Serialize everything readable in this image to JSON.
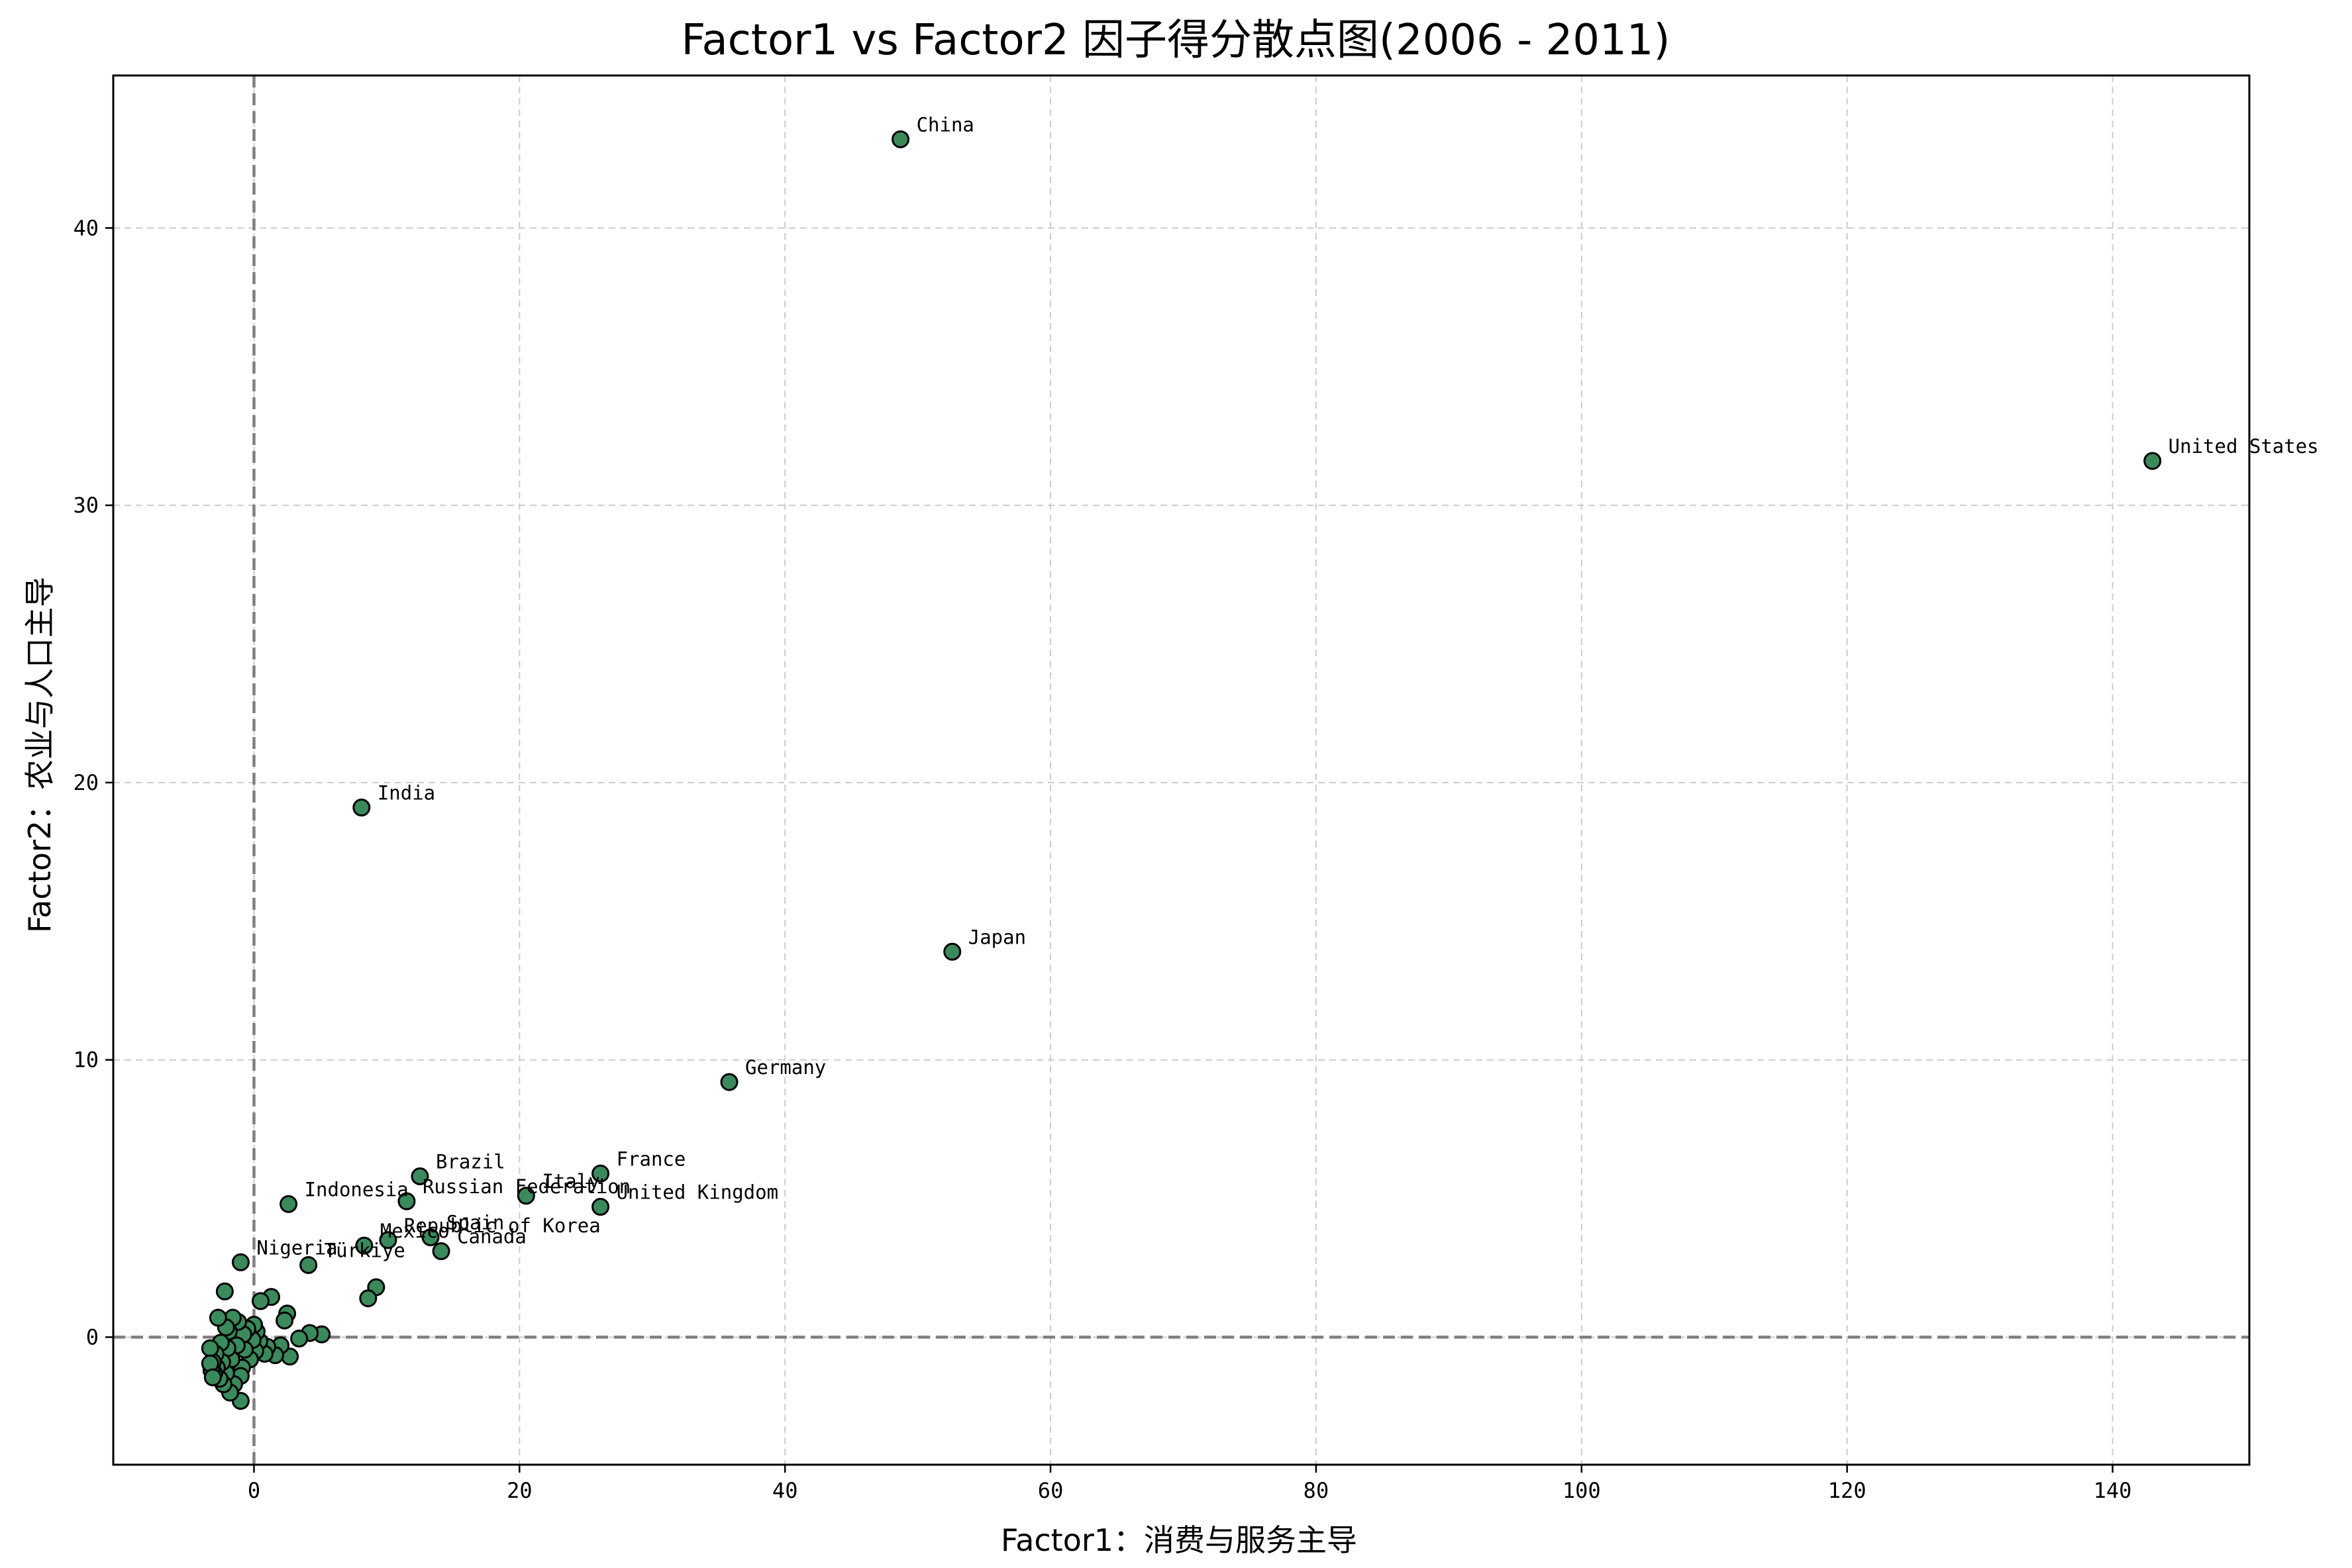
{
  "chart_data": {
    "type": "scatter",
    "title": "Factor1 vs Factor2 因子得分散点图(2006 - 2011)",
    "xlabel": "Factor1：消费与服务主导",
    "ylabel": "Factor2：农业与人口主导",
    "xlim": [
      -10.6,
      150.3
    ],
    "ylim": [
      -4.6,
      45.5
    ],
    "xticks": [
      0,
      20,
      40,
      60,
      80,
      100,
      120,
      140
    ],
    "yticks": [
      0,
      10,
      20,
      30,
      40
    ],
    "reference_lines": {
      "x": 0,
      "y": 0
    },
    "grid": true,
    "colors": {
      "marker_fill": "#3a8a5c",
      "marker_edge": "#000000",
      "reference": "#7f7f7f",
      "grid": "#cccccc"
    },
    "labeled_points": [
      {
        "name": "China",
        "x": 48.7,
        "y": 43.2
      },
      {
        "name": "United States",
        "x": 143.0,
        "y": 31.6
      },
      {
        "name": "India",
        "x": 8.1,
        "y": 19.1
      },
      {
        "name": "Japan",
        "x": 52.6,
        "y": 13.9
      },
      {
        "name": "Germany",
        "x": 35.8,
        "y": 9.2
      },
      {
        "name": "France",
        "x": 26.1,
        "y": 5.9
      },
      {
        "name": "Brazil",
        "x": 12.5,
        "y": 5.8
      },
      {
        "name": "Italy",
        "x": 20.5,
        "y": 5.1
      },
      {
        "name": "Russian Federation",
        "x": 11.5,
        "y": 4.9
      },
      {
        "name": "United Kingdom",
        "x": 26.1,
        "y": 4.7
      },
      {
        "name": "Indonesia",
        "x": 2.6,
        "y": 4.8
      },
      {
        "name": "Spain",
        "x": 13.3,
        "y": 3.6
      },
      {
        "name": "Republic of Korea",
        "x": 10.1,
        "y": 3.5
      },
      {
        "name": "Mexico",
        "x": 8.3,
        "y": 3.3
      },
      {
        "name": "Canada",
        "x": 14.1,
        "y": 3.1
      },
      {
        "name": "Nigeria",
        "x": -1.0,
        "y": 2.7
      },
      {
        "name": "Türkiye",
        "x": 4.1,
        "y": 2.6
      }
    ],
    "points": [
      {
        "x": 9.2,
        "y": 1.8
      },
      {
        "x": 8.6,
        "y": 1.4
      },
      {
        "x": 5.1,
        "y": 0.1
      },
      {
        "x": 4.2,
        "y": 0.15
      },
      {
        "x": 3.4,
        "y": -0.05
      },
      {
        "x": 2.7,
        "y": -0.7
      },
      {
        "x": 2.5,
        "y": 0.85
      },
      {
        "x": 2.3,
        "y": 0.6
      },
      {
        "x": 2.0,
        "y": -0.3
      },
      {
        "x": 1.6,
        "y": -0.65
      },
      {
        "x": 1.3,
        "y": 1.45
      },
      {
        "x": 1.0,
        "y": -0.35
      },
      {
        "x": 0.8,
        "y": -0.6
      },
      {
        "x": 0.5,
        "y": 1.3
      },
      {
        "x": 0.4,
        "y": -0.15
      },
      {
        "x": 0.2,
        "y": 0.2
      },
      {
        "x": 0.1,
        "y": -0.5
      },
      {
        "x": 0.0,
        "y": 0.45
      },
      {
        "x": -0.1,
        "y": -0.1
      },
      {
        "x": -0.3,
        "y": -0.8
      },
      {
        "x": -0.5,
        "y": 0.3
      },
      {
        "x": -0.7,
        "y": -0.45
      },
      {
        "x": -0.8,
        "y": 0.1
      },
      {
        "x": -0.9,
        "y": -1.1
      },
      {
        "x": -1.0,
        "y": -1.4
      },
      {
        "x": -1.0,
        "y": -2.3
      },
      {
        "x": -1.2,
        "y": 0.55
      },
      {
        "x": -1.3,
        "y": -0.3
      },
      {
        "x": -1.5,
        "y": -1.7
      },
      {
        "x": -1.6,
        "y": 0.7
      },
      {
        "x": -1.7,
        "y": -0.8
      },
      {
        "x": -1.8,
        "y": -2.0
      },
      {
        "x": -1.9,
        "y": 0.2
      },
      {
        "x": -2.0,
        "y": -0.4
      },
      {
        "x": -2.1,
        "y": 0.35
      },
      {
        "x": -2.1,
        "y": -1.3
      },
      {
        "x": -2.2,
        "y": 1.65
      },
      {
        "x": -2.3,
        "y": -1.7
      },
      {
        "x": -2.4,
        "y": -0.9
      },
      {
        "x": -2.5,
        "y": -0.2
      },
      {
        "x": -2.6,
        "y": -1.5
      },
      {
        "x": -2.7,
        "y": 0.7
      },
      {
        "x": -2.8,
        "y": -1.1
      },
      {
        "x": -2.9,
        "y": -0.6
      },
      {
        "x": -3.0,
        "y": -1.3
      },
      {
        "x": -3.1,
        "y": -0.9
      },
      {
        "x": -3.2,
        "y": -1.2
      },
      {
        "x": -3.3,
        "y": -0.4
      },
      {
        "x": -3.3,
        "y": -0.95
      },
      {
        "x": -3.1,
        "y": -1.45
      }
    ]
  }
}
